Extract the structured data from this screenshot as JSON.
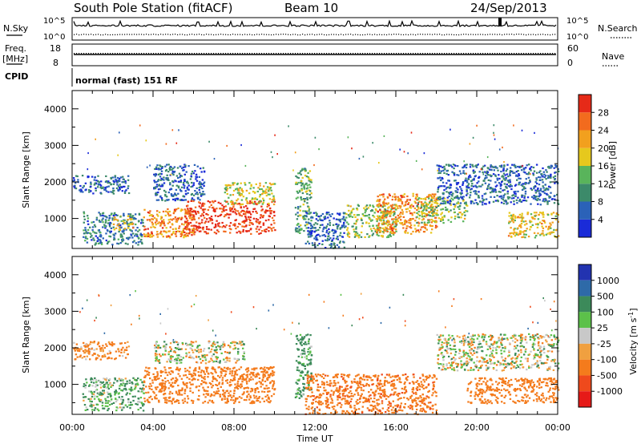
{
  "header": {
    "station": "South Pole Station (fitACF)",
    "beam": "Beam 10",
    "date": "24/Sep/2013"
  },
  "strip_panels": {
    "nsky": {
      "left_label": "N.Sky",
      "right_label": "N.Search",
      "top_tick": "10^5",
      "bottom_tick": "10^0"
    },
    "freq": {
      "left_label_1": "Freq.",
      "left_label_2": "[MHz]",
      "right_label": "Nave",
      "left_top": "18",
      "left_bottom": "8",
      "right_top": "60",
      "right_bottom": "0"
    },
    "cpid": {
      "left_label": "CPID",
      "mode_text": "normal (fast) 151 RF"
    }
  },
  "axes": {
    "ylabel": "Slant Range [km]",
    "xlabel": "Time UT",
    "y_ticks": [
      "1000",
      "2000",
      "3000",
      "4000"
    ],
    "x_ticks": [
      "00:00",
      "04:00",
      "08:00",
      "12:00",
      "16:00",
      "20:00",
      "00:00"
    ]
  },
  "colorbars": {
    "power": {
      "label": "Power [dB]",
      "ticks": [
        "4",
        "8",
        "12",
        "16",
        "20",
        "24",
        "28"
      ],
      "colors": [
        "#1a2bd8",
        "#2b62b8",
        "#3c8a6a",
        "#59b45b",
        "#e6c81d",
        "#f2a01e",
        "#f26b1e",
        "#e62a18"
      ]
    },
    "velocity": {
      "label_main": "Velocity [m s",
      "label_sup": "-1",
      "label_end": "]",
      "ticks": [
        "1000",
        "500",
        "100",
        "25",
        "-25",
        "-100",
        "-500",
        "-1000"
      ],
      "colors": [
        "#2233b0",
        "#2e6aa8",
        "#3c8a5a",
        "#5cc14a",
        "#c8c8c8",
        "#f0a040",
        "#f47b1c",
        "#ef4a1c",
        "#e61a18"
      ]
    }
  },
  "chart_data": {
    "type": "heatmap",
    "title": "South Pole Station (fitACF)",
    "x_range_hours": [
      0,
      24
    ],
    "y_range_km": [
      180,
      4500
    ],
    "panels": [
      {
        "name": "Power",
        "unit": "dB",
        "scale": [
          0,
          30
        ],
        "echo_regions": [
          {
            "t_start": 0.0,
            "t_end": 2.8,
            "r_low": 1700,
            "r_high": 2200,
            "value": 6
          },
          {
            "t_start": 0.5,
            "t_end": 3.5,
            "r_low": 300,
            "r_high": 1200,
            "value": 8
          },
          {
            "t_start": 2.0,
            "t_end": 3.0,
            "r_low": 700,
            "r_high": 1100,
            "value": 18
          },
          {
            "t_start": 3.5,
            "t_end": 6.0,
            "r_low": 500,
            "r_high": 1300,
            "value": 22
          },
          {
            "t_start": 4.0,
            "t_end": 6.5,
            "r_low": 1500,
            "r_high": 2500,
            "value": 6
          },
          {
            "t_start": 5.5,
            "t_end": 10.0,
            "r_low": 600,
            "r_high": 1500,
            "value": 28
          },
          {
            "t_start": 7.5,
            "t_end": 10.0,
            "r_low": 1400,
            "r_high": 2000,
            "value": 16
          },
          {
            "t_start": 11.0,
            "t_end": 11.8,
            "r_low": 600,
            "r_high": 2400,
            "value": 12
          },
          {
            "t_start": 11.5,
            "t_end": 13.5,
            "r_low": 200,
            "r_high": 1200,
            "value": 6
          },
          {
            "t_start": 13.5,
            "t_end": 16.0,
            "r_low": 500,
            "r_high": 1400,
            "value": 14
          },
          {
            "t_start": 15.0,
            "t_end": 18.0,
            "r_low": 600,
            "r_high": 1700,
            "value": 22
          },
          {
            "t_start": 17.0,
            "t_end": 19.5,
            "r_low": 900,
            "r_high": 1600,
            "value": 14
          },
          {
            "t_start": 18.0,
            "t_end": 24.0,
            "r_low": 1400,
            "r_high": 2500,
            "value": 6
          },
          {
            "t_start": 21.5,
            "t_end": 24.0,
            "r_low": 500,
            "r_high": 1200,
            "value": 18
          }
        ]
      },
      {
        "name": "Velocity",
        "unit": "m s^-1",
        "scale": [
          -1000,
          1000
        ],
        "echo_regions": [
          {
            "t_start": 0.0,
            "t_end": 2.8,
            "r_low": 1700,
            "r_high": 2200,
            "value": -150
          },
          {
            "t_start": 0.5,
            "t_end": 3.5,
            "r_low": 300,
            "r_high": 1200,
            "value": 100
          },
          {
            "t_start": 3.5,
            "t_end": 10.0,
            "r_low": 500,
            "r_high": 1500,
            "value": -300
          },
          {
            "t_start": 4.0,
            "t_end": 8.5,
            "r_low": 1600,
            "r_high": 2200,
            "value": 0
          },
          {
            "t_start": 11.0,
            "t_end": 11.8,
            "r_low": 600,
            "r_high": 2400,
            "value": 150
          },
          {
            "t_start": 11.5,
            "t_end": 18.0,
            "r_low": 200,
            "r_high": 1300,
            "value": -400
          },
          {
            "t_start": 18.0,
            "t_end": 24.0,
            "r_low": 1400,
            "r_high": 2400,
            "value": 0
          },
          {
            "t_start": 19.5,
            "t_end": 24.0,
            "r_low": 500,
            "r_high": 1200,
            "value": -250
          }
        ]
      }
    ]
  }
}
